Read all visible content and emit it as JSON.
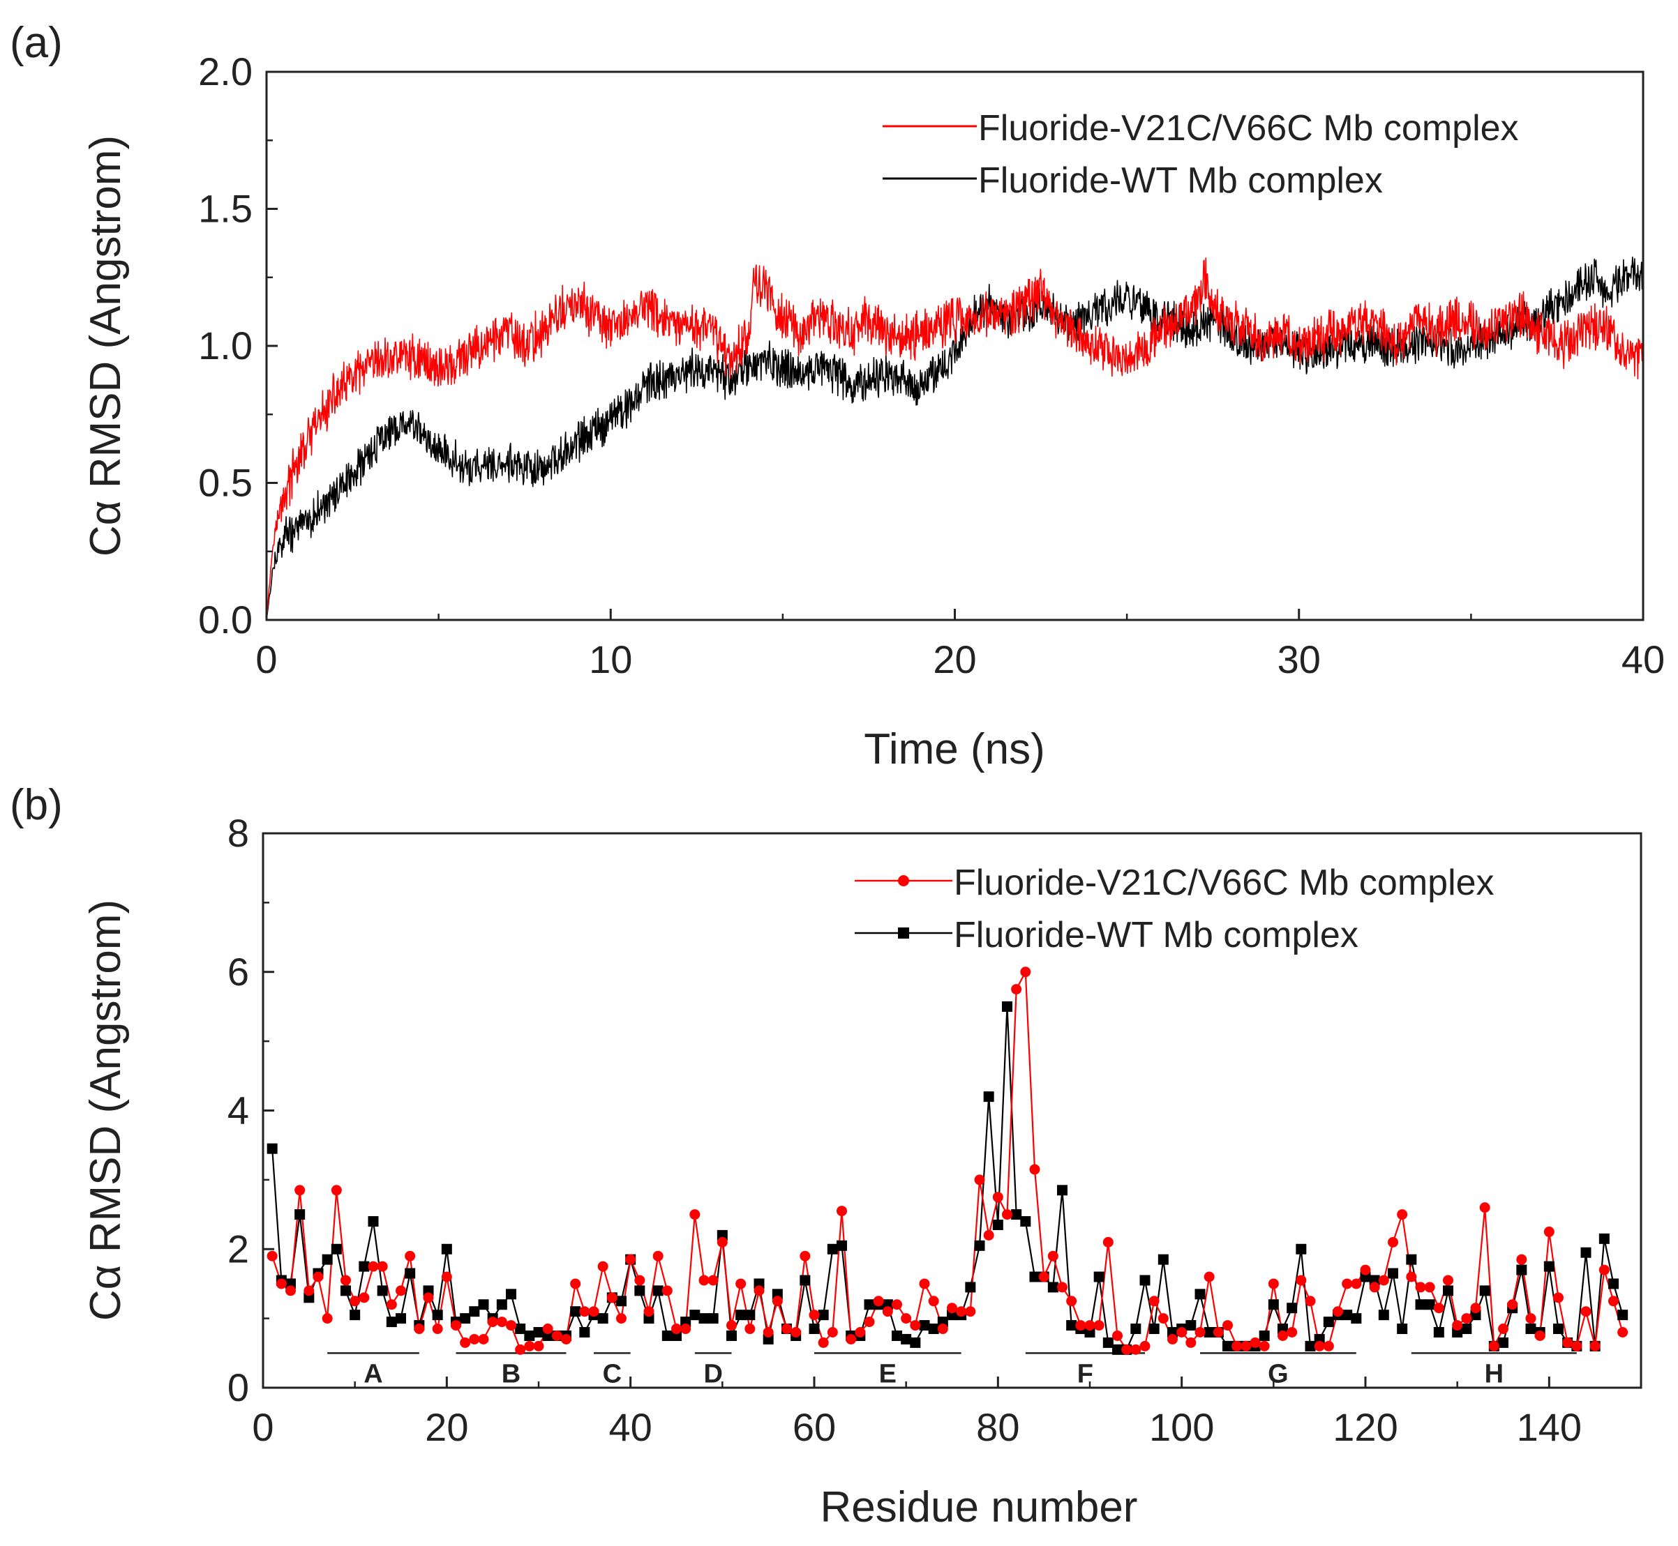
{
  "chart_data": [
    {
      "panel": "(a)",
      "type": "line",
      "title": "",
      "xlabel": "Time (ns)",
      "ylabel": "Cα RMSD (Angstrom)",
      "xlim": [
        0,
        40
      ],
      "ylim": [
        0.0,
        2.0
      ],
      "xticks": [
        "0",
        "10",
        "20",
        "30",
        "40"
      ],
      "yticks": [
        "0.0",
        "0.5",
        "1.0",
        "1.5",
        "2.0"
      ],
      "legend_position": "top-right",
      "series": [
        {
          "name": "Fluoride-V21C/V66C Mb complex",
          "color": "#ff0000",
          "noise": 0.07,
          "x": [
            0,
            0.2,
            0.5,
            1,
            1.5,
            2,
            2.5,
            3,
            3.5,
            4,
            4.5,
            5,
            5.5,
            6,
            6.5,
            7,
            7.5,
            8,
            8.5,
            9,
            9.5,
            10,
            10.5,
            11,
            11.5,
            12,
            12.5,
            13,
            13.5,
            14,
            14.2,
            14.5,
            15,
            15.5,
            16,
            16.5,
            17,
            17.5,
            18,
            18.5,
            19,
            19.5,
            20,
            20.5,
            21,
            21.5,
            22,
            22.5,
            23,
            23.5,
            24,
            24.5,
            25,
            25.5,
            26,
            26.5,
            27,
            27.3,
            27.5,
            28,
            28.5,
            29,
            29.5,
            30,
            30.5,
            31,
            31.5,
            32,
            32.5,
            33,
            33.5,
            34,
            34.5,
            35,
            35.5,
            36,
            36.5,
            37,
            37.5,
            38,
            38.5,
            39,
            39.5,
            40
          ],
          "y": [
            0.0,
            0.3,
            0.45,
            0.6,
            0.72,
            0.82,
            0.88,
            0.92,
            0.95,
            0.97,
            0.95,
            0.92,
            0.93,
            0.98,
            1.02,
            1.05,
            1.0,
            1.05,
            1.12,
            1.15,
            1.12,
            1.05,
            1.1,
            1.15,
            1.1,
            1.05,
            1.08,
            1.05,
            0.95,
            1.05,
            1.25,
            1.2,
            1.1,
            1.05,
            1.1,
            1.08,
            1.05,
            1.1,
            1.05,
            1.02,
            1.05,
            1.08,
            1.1,
            1.1,
            1.12,
            1.1,
            1.15,
            1.2,
            1.1,
            1.05,
            1.0,
            0.98,
            0.95,
            1.0,
            1.05,
            1.1,
            1.15,
            1.25,
            1.15,
            1.1,
            1.05,
            1.0,
            1.05,
            1.0,
            1.02,
            1.05,
            1.08,
            1.1,
            1.05,
            1.0,
            1.1,
            1.05,
            1.1,
            1.08,
            1.05,
            1.1,
            1.12,
            1.05,
            1.0,
            1.02,
            1.08,
            1.05,
            0.98,
            0.95
          ]
        },
        {
          "name": "Fluoride-WT Mb complex",
          "color": "#000000",
          "noise": 0.06,
          "x": [
            0,
            0.2,
            0.5,
            1,
            1.5,
            2,
            2.5,
            3,
            3.5,
            4,
            4.5,
            5,
            5.5,
            6,
            6.5,
            7,
            7.5,
            8,
            8.5,
            9,
            9.5,
            10,
            10.5,
            11,
            11.5,
            12,
            12.5,
            13,
            13.5,
            14,
            14.5,
            15,
            15.5,
            16,
            16.5,
            17,
            17.5,
            18,
            18.5,
            19,
            19.5,
            20,
            20.5,
            21,
            21.5,
            22,
            22.5,
            23,
            23.5,
            24,
            24.5,
            25,
            25.5,
            26,
            26.5,
            27,
            27.5,
            28,
            28.5,
            29,
            29.5,
            30,
            30.5,
            31,
            31.5,
            32,
            32.5,
            33,
            33.5,
            34,
            34.5,
            35,
            35.5,
            36,
            36.5,
            37,
            37.5,
            38,
            38.5,
            39,
            39.5,
            40
          ],
          "y": [
            0.0,
            0.2,
            0.3,
            0.35,
            0.4,
            0.45,
            0.52,
            0.6,
            0.68,
            0.72,
            0.68,
            0.62,
            0.58,
            0.55,
            0.57,
            0.58,
            0.55,
            0.55,
            0.6,
            0.65,
            0.7,
            0.72,
            0.78,
            0.85,
            0.88,
            0.9,
            0.92,
            0.9,
            0.88,
            0.92,
            0.95,
            0.92,
            0.9,
            0.92,
            0.9,
            0.85,
            0.88,
            0.9,
            0.88,
            0.85,
            0.9,
            0.98,
            1.1,
            1.15,
            1.1,
            1.12,
            1.15,
            1.1,
            1.08,
            1.12,
            1.15,
            1.18,
            1.15,
            1.1,
            1.08,
            1.05,
            1.1,
            1.05,
            1.0,
            1.0,
            1.02,
            0.98,
            0.95,
            0.98,
            1.0,
            1.02,
            1.0,
            0.98,
            1.0,
            1.02,
            0.98,
            1.0,
            1.02,
            1.05,
            1.08,
            1.1,
            1.15,
            1.2,
            1.25,
            1.2,
            1.25,
            1.25
          ]
        }
      ]
    },
    {
      "panel": "(b)",
      "type": "line",
      "title": "",
      "xlabel": "Residue number",
      "ylabel": "Cα RMSD (Angstrom)",
      "xlim": [
        0,
        150
      ],
      "ylim": [
        0,
        8
      ],
      "xticks": [
        "0",
        "20",
        "40",
        "60",
        "80",
        "100",
        "120",
        "140"
      ],
      "yticks": [
        "0",
        "2",
        "4",
        "6",
        "8"
      ],
      "legend_position": "top-right",
      "helices": [
        {
          "label": "A",
          "start": 7,
          "end": 17
        },
        {
          "label": "B",
          "start": 21,
          "end": 33
        },
        {
          "label": "C",
          "start": 36,
          "end": 40
        },
        {
          "label": "D",
          "start": 47,
          "end": 51
        },
        {
          "label": "E",
          "start": 60,
          "end": 76
        },
        {
          "label": "F",
          "start": 83,
          "end": 96
        },
        {
          "label": "G",
          "start": 102,
          "end": 119
        },
        {
          "label": "H",
          "start": 125,
          "end": 143
        }
      ],
      "series": [
        {
          "name": "Fluoride-V21C/V66C Mb complex",
          "color": "#ff0000",
          "marker": "circle",
          "values": [
            1.9,
            1.5,
            1.4,
            2.85,
            1.4,
            1.6,
            1.0,
            2.85,
            1.55,
            1.25,
            1.3,
            1.75,
            1.75,
            1.2,
            1.4,
            1.9,
            0.85,
            1.3,
            0.85,
            1.6,
            0.9,
            0.65,
            0.7,
            0.7,
            0.95,
            0.95,
            0.9,
            0.55,
            0.6,
            0.6,
            0.85,
            0.75,
            0.7,
            1.5,
            1.1,
            1.1,
            1.75,
            1.3,
            1.0,
            1.85,
            1.55,
            1.1,
            1.9,
            1.4,
            0.85,
            0.85,
            2.5,
            1.55,
            1.55,
            2.1,
            0.9,
            1.5,
            0.85,
            1.4,
            0.8,
            1.25,
            0.85,
            0.8,
            1.9,
            1.05,
            0.65,
            0.8,
            2.55,
            0.7,
            0.8,
            0.95,
            1.25,
            1.1,
            1.2,
            1.0,
            0.9,
            1.5,
            1.25,
            0.85,
            1.15,
            1.1,
            1.1,
            3.0,
            2.2,
            2.75,
            2.5,
            5.75,
            6.0,
            3.15,
            1.6,
            1.9,
            1.45,
            1.25,
            0.9,
            0.9,
            0.9,
            2.1,
            0.75,
            0.55,
            0.55,
            0.6,
            1.25,
            1.0,
            0.7,
            0.8,
            0.65,
            0.8,
            1.6,
            0.8,
            0.9,
            0.6,
            0.6,
            0.65,
            0.6,
            1.5,
            0.75,
            0.8,
            1.55,
            1.25,
            0.6,
            0.6,
            1.1,
            1.5,
            1.5,
            1.7,
            1.45,
            1.55,
            2.1,
            2.5,
            1.6,
            1.45,
            1.45,
            1.15,
            1.55,
            0.9,
            1.0,
            1.15,
            2.6,
            0.6,
            0.85,
            1.2,
            1.85,
            1.0,
            0.75,
            2.25,
            1.3,
            0.65,
            0.6,
            1.1,
            0.6,
            1.7,
            1.25,
            0.8
          ]
        },
        {
          "name": "Fluoride-WT Mb complex",
          "color": "#000000",
          "marker": "square",
          "values": [
            3.45,
            1.55,
            1.5,
            2.5,
            1.3,
            1.65,
            1.85,
            2.0,
            1.4,
            1.05,
            1.75,
            2.4,
            1.4,
            0.95,
            1.0,
            1.65,
            0.9,
            1.4,
            1.05,
            2.0,
            0.95,
            1.0,
            1.1,
            1.2,
            1.0,
            1.2,
            1.35,
            0.85,
            0.75,
            0.8,
            0.75,
            0.75,
            0.75,
            1.1,
            0.8,
            1.05,
            1.0,
            1.3,
            1.25,
            1.85,
            1.4,
            1.0,
            1.4,
            0.75,
            0.75,
            0.95,
            1.05,
            1.0,
            1.0,
            2.2,
            0.75,
            1.05,
            1.05,
            1.5,
            0.7,
            1.35,
            0.85,
            0.75,
            1.55,
            0.85,
            1.05,
            2.0,
            2.05,
            0.75,
            0.75,
            1.2,
            1.2,
            1.2,
            0.75,
            0.7,
            0.65,
            0.9,
            0.85,
            0.95,
            1.05,
            1.05,
            1.45,
            2.05,
            4.2,
            2.35,
            5.5,
            2.5,
            2.4,
            1.6,
            1.6,
            1.45,
            2.85,
            0.9,
            0.85,
            0.8,
            1.6,
            0.65,
            0.55,
            0.55,
            0.85,
            1.55,
            0.85,
            1.85,
            0.8,
            0.85,
            0.9,
            1.35,
            0.8,
            0.8,
            0.6,
            0.6,
            0.6,
            0.6,
            0.75,
            1.2,
            0.85,
            1.15,
            2.0,
            0.6,
            0.7,
            0.95,
            1.05,
            1.05,
            1.0,
            1.6,
            1.55,
            1.05,
            1.65,
            0.85,
            1.85,
            1.2,
            1.2,
            0.8,
            1.4,
            0.8,
            0.85,
            1.05,
            1.4,
            0.6,
            0.65,
            1.15,
            1.7,
            0.85,
            0.8,
            1.75,
            0.85,
            0.65,
            0.6,
            1.95,
            0.6,
            2.15,
            1.5,
            1.05
          ]
        }
      ]
    }
  ]
}
